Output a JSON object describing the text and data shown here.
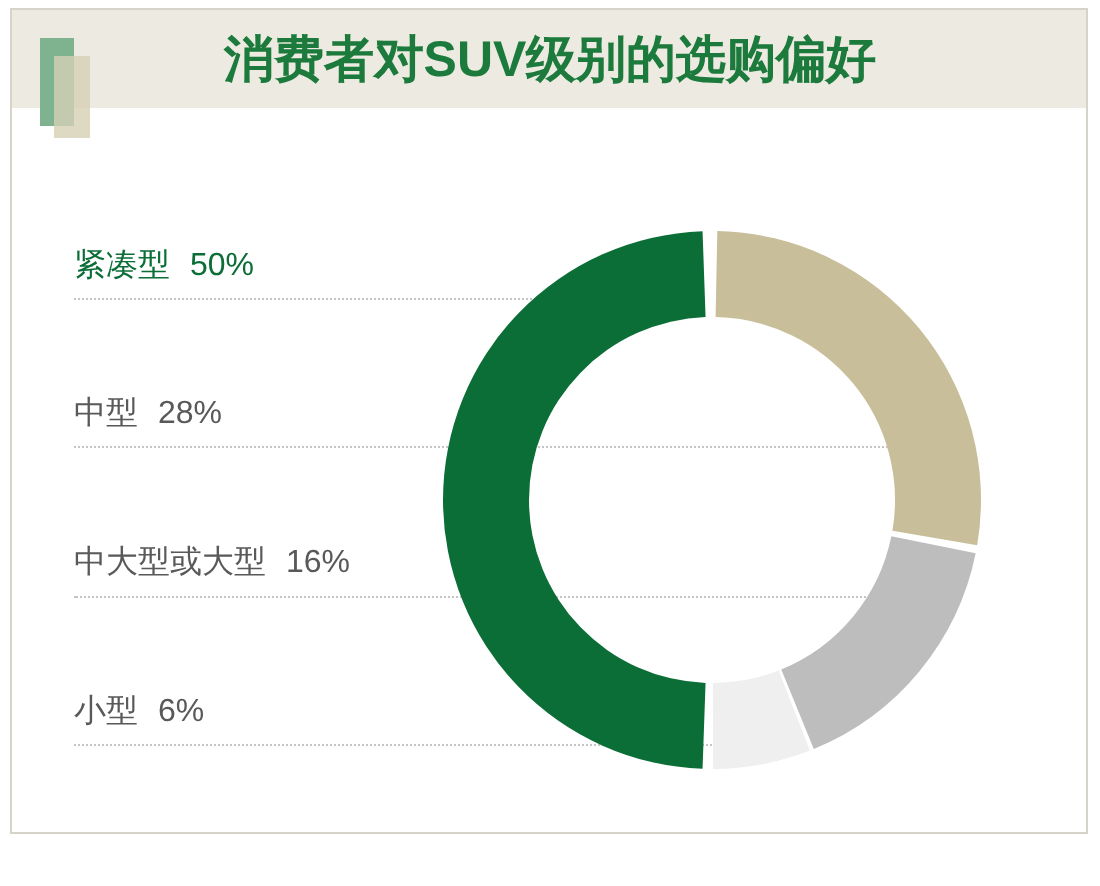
{
  "chart_data": {
    "type": "donut",
    "title": "消费者对SUV级别的选购偏好",
    "categories": [
      "紧凑型",
      "中型",
      "中大型或大型",
      "小型"
    ],
    "values": [
      50,
      28,
      16,
      6
    ],
    "colors": [
      "#0b6e37",
      "#c8bf9a",
      "#bdbdbd",
      "#efefef"
    ],
    "value_labels": [
      "50%",
      "28%",
      "16%",
      "6%"
    ]
  }
}
